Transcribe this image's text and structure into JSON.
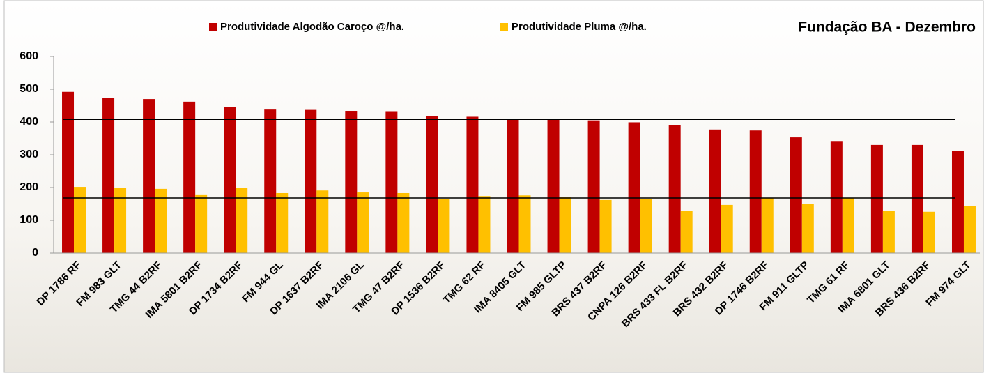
{
  "chart_data": {
    "type": "bar",
    "title": "Fundação BA - Dezembro",
    "categories": [
      "DP 1786 RF",
      "FM 983 GLT",
      "TMG 44 B2RF",
      "IMA 5801 B2RF",
      "DP 1734 B2RF",
      "FM 944 GL",
      "DP 1637 B2RF",
      "IMA 2106 GL",
      "TMG 47 B2RF",
      "DP 1536 B2RF",
      "TMG 62 RF",
      "IMA 8405 GLT",
      "FM 985 GLTP",
      "BRS 437 B2RF",
      "CNPA 126 B2RF",
      "BRS 433 FL B2RF",
      "BRS 432 B2RF",
      "DP 1746 B2RF",
      "FM 911 GLTP",
      "TMG 61 RF",
      "IMA 6801 GLT",
      "BRS 436 B2RF",
      "FM 974 GLT"
    ],
    "series": [
      {
        "name": "Produtividade Algodão Caroço @/ha.",
        "color": "#c00000",
        "values": [
          492,
          474,
          470,
          462,
          445,
          438,
          437,
          434,
          433,
          417,
          416,
          410,
          408,
          405,
          399,
          390,
          377,
          374,
          353,
          342,
          330,
          330,
          312
        ]
      },
      {
        "name": "Produtividade Pluma @/ha.",
        "color": "#ffc000",
        "values": [
          202,
          200,
          196,
          179,
          198,
          183,
          191,
          185,
          183,
          164,
          174,
          176,
          170,
          162,
          164,
          128,
          147,
          168,
          151,
          168,
          128,
          126,
          143
        ]
      }
    ],
    "reference_lines": [
      408,
      168
    ],
    "reference_color": "#000000",
    "ylim": [
      0,
      600
    ],
    "yticks": [
      0,
      100,
      200,
      300,
      400,
      500,
      600
    ],
    "grid": false,
    "legend": "top"
  }
}
